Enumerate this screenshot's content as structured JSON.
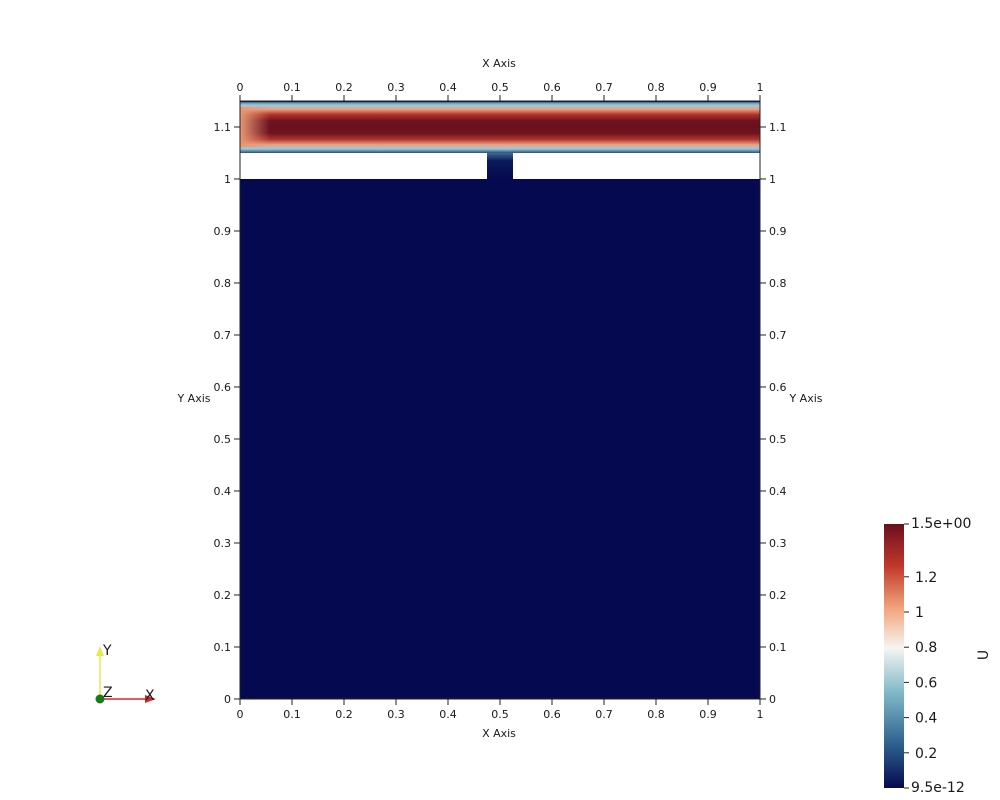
{
  "chart_data": {
    "type": "heatmap",
    "title": "",
    "xlabel": "X Axis",
    "ylabel": "Y Axis",
    "xlim": [
      0,
      1
    ],
    "ylim": [
      0,
      1.15
    ],
    "x_ticks": [
      0,
      0.1,
      0.2,
      0.3,
      0.4,
      0.5,
      0.6,
      0.7,
      0.8,
      0.9,
      1
    ],
    "x_tick_labels": [
      "0",
      "0.1",
      "0.2",
      "0.3",
      "0.4",
      "0.5",
      "0.6",
      "0.7",
      "0.8",
      "0.9",
      "1"
    ],
    "y_ticks": [
      0,
      0.1,
      0.2,
      0.3,
      0.4,
      0.5,
      0.6,
      0.7,
      0.8,
      0.9,
      1,
      1.1
    ],
    "y_tick_labels": [
      "0",
      "0.1",
      "0.2",
      "0.3",
      "0.4",
      "0.5",
      "0.6",
      "0.7",
      "0.8",
      "0.9",
      "1",
      "1.1"
    ],
    "regions": [
      {
        "region": "lower cavity",
        "x": [
          0,
          1
        ],
        "y": [
          0,
          1
        ],
        "U": 0
      },
      {
        "region": "slot",
        "x": [
          0.475,
          0.525
        ],
        "y": [
          1.0,
          1.05
        ],
        "U": 0.1
      },
      {
        "region": "upper channel",
        "x": [
          0,
          1
        ],
        "y": [
          1.05,
          1.15
        ],
        "U_centerline": 1.5,
        "U_wall": 0
      }
    ],
    "colorbar": {
      "label": "U",
      "min": 9.5e-12,
      "max": 1.5,
      "min_label": "9.5e-12",
      "max_label": "1.5e+00",
      "ticks": [
        0.2,
        0.4,
        0.6,
        0.8,
        1,
        1.2
      ],
      "tick_labels": [
        "0.2",
        "0.4",
        "0.6",
        "0.8",
        "1",
        "1.2"
      ],
      "colormap": [
        "#050a50",
        "#2b5e8c",
        "#7fb8c8",
        "#f5f5f0",
        "#f2a57c",
        "#c1392b",
        "#6b0f1e"
      ]
    },
    "orientation_axes": {
      "x_label": "X",
      "y_label": "Y",
      "z_label": "Z",
      "x_color": "#d62728",
      "y_color": "#e8e84a",
      "z_color": "#1a7a1a"
    }
  }
}
